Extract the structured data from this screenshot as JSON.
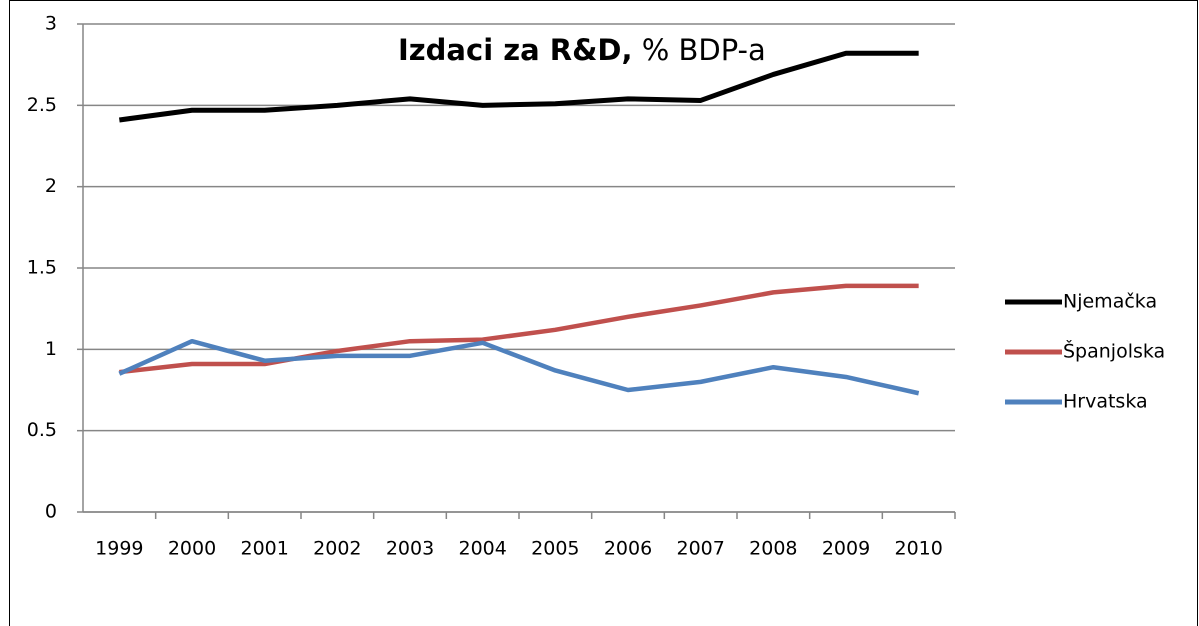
{
  "chart_data": {
    "type": "line",
    "title": "Izdaci za R&D,",
    "subtitle": "% BDP-a",
    "categories": [
      "1999",
      "2000",
      "2001",
      "2002",
      "2003",
      "2004",
      "2005",
      "2006",
      "2007",
      "2008",
      "2009",
      "2010"
    ],
    "series": [
      {
        "name": "Njemačka",
        "color": "#000000",
        "values": [
          2.41,
          2.47,
          2.47,
          2.5,
          2.54,
          2.5,
          2.51,
          2.54,
          2.53,
          2.69,
          2.82,
          2.82
        ]
      },
      {
        "name": "Španjolska",
        "color": "#c0504d",
        "values": [
          0.86,
          0.91,
          0.91,
          0.99,
          1.05,
          1.06,
          1.12,
          1.2,
          1.27,
          1.35,
          1.39,
          1.39
        ]
      },
      {
        "name": "Hrvatska",
        "color": "#4f81bd",
        "values": [
          0.85,
          1.05,
          0.93,
          0.96,
          0.96,
          1.04,
          0.87,
          0.75,
          0.8,
          0.89,
          0.83,
          0.73
        ]
      }
    ],
    "ylim": [
      0,
      3
    ],
    "yticks": [
      0,
      0.5,
      1,
      1.5,
      2,
      2.5,
      3
    ],
    "grid": true,
    "legend": "right"
  }
}
